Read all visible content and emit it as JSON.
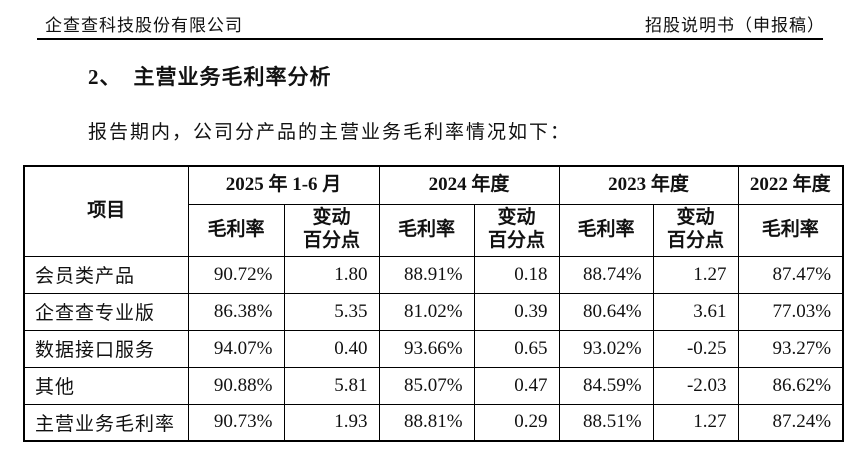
{
  "page_header": {
    "company": "企查查科技股份有限公司",
    "doc_title": "招股说明书（申报稿）"
  },
  "section": {
    "title_number": "2、",
    "title_text": "主营业务毛利率分析",
    "intro": "报告期内，公司分产品的主营业务毛利率情况如下："
  },
  "table": {
    "item_header": "项目",
    "periods": [
      {
        "label": "2025 年 1-6 月",
        "cols": [
          "毛利率",
          "变动\n百分点"
        ]
      },
      {
        "label": "2024 年度",
        "cols": [
          "毛利率",
          "变动\n百分点"
        ]
      },
      {
        "label": "2023 年度",
        "cols": [
          "毛利率",
          "变动\n百分点"
        ]
      },
      {
        "label": "2022 年度",
        "cols": [
          "毛利率"
        ]
      }
    ],
    "rows": [
      {
        "label": "会员类产品",
        "values": [
          "90.72%",
          "1.80",
          "88.91%",
          "0.18",
          "88.74%",
          "1.27",
          "87.47%"
        ]
      },
      {
        "label": "企查查专业版",
        "values": [
          "86.38%",
          "5.35",
          "81.02%",
          "0.39",
          "80.64%",
          "3.61",
          "77.03%"
        ]
      },
      {
        "label": "数据接口服务",
        "values": [
          "94.07%",
          "0.40",
          "93.66%",
          "0.65",
          "93.02%",
          "-0.25",
          "93.27%"
        ]
      },
      {
        "label": "其他",
        "values": [
          "90.88%",
          "5.81",
          "85.07%",
          "0.47",
          "84.59%",
          "-2.03",
          "86.62%"
        ]
      },
      {
        "label": "主营业务毛利率",
        "values": [
          "90.73%",
          "1.93",
          "88.81%",
          "0.29",
          "88.51%",
          "1.27",
          "87.24%"
        ]
      }
    ]
  }
}
